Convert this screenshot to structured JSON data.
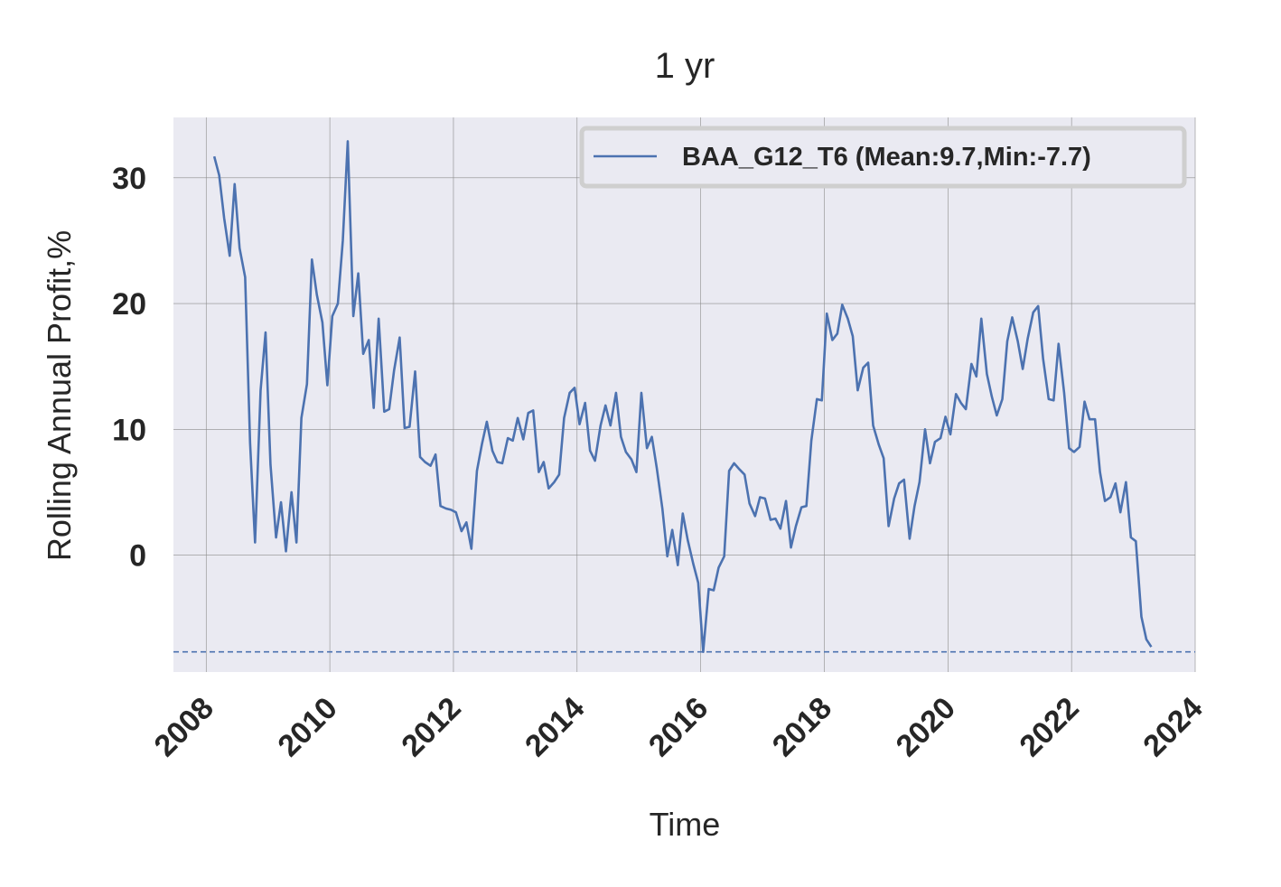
{
  "chart_data": {
    "type": "line",
    "title": "1 yr",
    "xlabel": "Time",
    "ylabel": "Rolling Annual Profit,%",
    "xlim": [
      2007.47,
      2024.0
    ],
    "ylim": [
      -9.3,
      34.8
    ],
    "x_ticks": [
      "2008",
      "2010",
      "2012",
      "2014",
      "2016",
      "2018",
      "2020",
      "2022",
      "2024"
    ],
    "y_ticks": [
      "0",
      "10",
      "20",
      "30"
    ],
    "grid": true,
    "legend_position": "top-right",
    "colors": {
      "series": "#4c72b0",
      "background": "#eaeaf2",
      "grid": "#8c8c8c"
    },
    "reference_lines": [
      {
        "y": -7.7,
        "style": "dashed"
      }
    ],
    "series": [
      {
        "name": "BAA_G12_T6 (Mean:9.7,Min:-7.7)",
        "x": [
          2008.13,
          2008.21,
          2008.29,
          2008.38,
          2008.46,
          2008.54,
          2008.63,
          2008.71,
          2008.79,
          2008.88,
          2008.96,
          2009.04,
          2009.13,
          2009.21,
          2009.29,
          2009.38,
          2009.46,
          2009.54,
          2009.63,
          2009.71,
          2009.79,
          2009.88,
          2009.96,
          2010.04,
          2010.13,
          2010.21,
          2010.29,
          2010.38,
          2010.46,
          2010.54,
          2010.63,
          2010.71,
          2010.79,
          2010.88,
          2010.96,
          2011.04,
          2011.13,
          2011.21,
          2011.29,
          2011.38,
          2011.46,
          2011.54,
          2011.63,
          2011.71,
          2011.79,
          2011.88,
          2011.96,
          2012.04,
          2012.13,
          2012.21,
          2012.29,
          2012.38,
          2012.46,
          2012.54,
          2012.63,
          2012.71,
          2012.79,
          2012.88,
          2012.96,
          2013.04,
          2013.13,
          2013.21,
          2013.29,
          2013.38,
          2013.46,
          2013.54,
          2013.63,
          2013.71,
          2013.79,
          2013.88,
          2013.96,
          2014.04,
          2014.13,
          2014.21,
          2014.29,
          2014.38,
          2014.46,
          2014.54,
          2014.63,
          2014.71,
          2014.79,
          2014.88,
          2014.96,
          2015.04,
          2015.13,
          2015.21,
          2015.29,
          2015.38,
          2015.46,
          2015.54,
          2015.63,
          2015.71,
          2015.79,
          2015.88,
          2015.96,
          2016.04,
          2016.13,
          2016.21,
          2016.29,
          2016.38,
          2016.46,
          2016.54,
          2016.63,
          2016.71,
          2016.79,
          2016.88,
          2016.96,
          2017.04,
          2017.13,
          2017.21,
          2017.29,
          2017.38,
          2017.46,
          2017.54,
          2017.63,
          2017.71,
          2017.79,
          2017.88,
          2017.96,
          2018.04,
          2018.13,
          2018.21,
          2018.29,
          2018.38,
          2018.46,
          2018.54,
          2018.63,
          2018.71,
          2018.79,
          2018.88,
          2018.96,
          2019.04,
          2019.13,
          2019.21,
          2019.29,
          2019.38,
          2019.46,
          2019.54,
          2019.63,
          2019.71,
          2019.79,
          2019.88,
          2019.96,
          2020.04,
          2020.13,
          2020.21,
          2020.29,
          2020.38,
          2020.46,
          2020.54,
          2020.63,
          2020.71,
          2020.79,
          2020.88,
          2020.96,
          2021.04,
          2021.13,
          2021.21,
          2021.29,
          2021.38,
          2021.46,
          2021.54,
          2021.63,
          2021.71,
          2021.79,
          2021.88,
          2021.96,
          2022.04,
          2022.13,
          2022.21,
          2022.29,
          2022.38,
          2022.46,
          2022.54,
          2022.63,
          2022.71,
          2022.79,
          2022.88,
          2022.96,
          2023.04,
          2023.13,
          2023.21,
          2023.29
        ],
        "y": [
          31.7,
          30.2,
          26.8,
          23.8,
          29.5,
          24.4,
          22.1,
          8.9,
          1.0,
          13.1,
          17.7,
          7.2,
          1.4,
          4.2,
          0.3,
          5.0,
          1.0,
          10.9,
          13.6,
          23.5,
          20.7,
          18.5,
          13.5,
          19.0,
          20.0,
          25.0,
          32.9,
          19.0,
          22.4,
          16.0,
          17.1,
          11.7,
          18.8,
          11.4,
          11.6,
          14.7,
          17.3,
          10.1,
          10.2,
          14.6,
          7.8,
          7.4,
          7.1,
          8.0,
          3.9,
          3.7,
          3.6,
          3.4,
          1.9,
          2.6,
          0.5,
          6.7,
          8.8,
          10.6,
          8.3,
          7.4,
          7.3,
          9.3,
          9.1,
          10.9,
          9.2,
          11.3,
          11.5,
          6.6,
          7.4,
          5.3,
          5.8,
          6.4,
          10.9,
          12.9,
          13.3,
          10.4,
          12.1,
          8.3,
          7.5,
          10.3,
          11.9,
          10.3,
          12.9,
          9.4,
          8.2,
          7.6,
          6.6,
          12.9,
          8.5,
          9.4,
          6.9,
          3.7,
          -0.1,
          2.0,
          -0.8,
          3.3,
          1.2,
          -0.7,
          -2.2,
          -7.7,
          -2.7,
          -2.8,
          -1.0,
          -0.1,
          6.7,
          7.3,
          6.8,
          6.4,
          4.1,
          3.1,
          4.6,
          4.5,
          2.8,
          2.9,
          2.1,
          4.3,
          0.6,
          2.3,
          3.8,
          3.9,
          9.1,
          12.4,
          12.3,
          19.2,
          17.1,
          17.6,
          19.9,
          18.8,
          17.4,
          13.1,
          14.9,
          15.3,
          10.3,
          8.8,
          7.7,
          2.3,
          4.5,
          5.7,
          6.0,
          1.3,
          3.9,
          5.8,
          10.0,
          7.3,
          9.0,
          9.3,
          11.0,
          9.6,
          12.8,
          12.1,
          11.6,
          15.2,
          14.2,
          18.8,
          14.4,
          12.6,
          11.1,
          12.4,
          17.0,
          18.9,
          17.0,
          14.8,
          17.2,
          19.3,
          19.8,
          15.6,
          12.4,
          12.3,
          16.8,
          12.9,
          8.5,
          8.2,
          8.6,
          12.2,
          10.8,
          10.8,
          6.6,
          4.3,
          4.6,
          5.7,
          3.4,
          5.8,
          1.4,
          1.1,
          -4.9,
          -6.7,
          -7.3
        ]
      }
    ]
  }
}
